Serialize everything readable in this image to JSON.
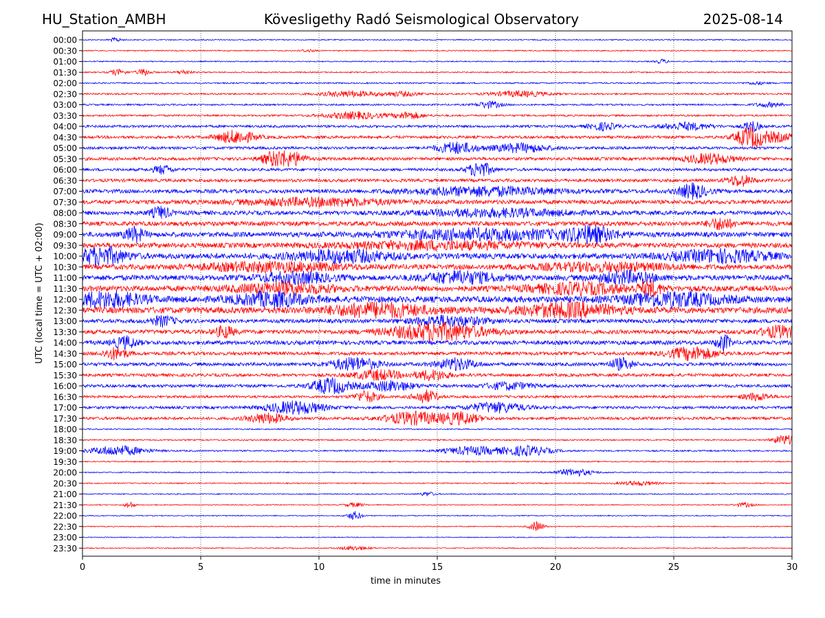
{
  "header": {
    "station": "HU_Station_AMBH",
    "title": "Kövesligethy Radó Seismological Observatory",
    "date": "2025-08-14"
  },
  "chart_data": {
    "type": "line",
    "title": "Kövesligethy Radó Seismological Observatory",
    "xlabel": "time in minutes",
    "ylabel": "UTC (local time = UTC + 02:00)",
    "xlim": [
      0,
      30
    ],
    "xticks": [
      0,
      5,
      10,
      15,
      20,
      25,
      30
    ],
    "grid": "vertical dotted at each x tick",
    "colors": [
      "#0000ff",
      "#ff0000"
    ],
    "rows": [
      {
        "label": "00:00",
        "color": "#0000ff",
        "base": 0.8,
        "events": [
          [
            1.4,
            0.25,
            3
          ]
        ]
      },
      {
        "label": "00:30",
        "color": "#ff0000",
        "base": 0.8,
        "events": [
          [
            9.5,
            0.3,
            2
          ]
        ]
      },
      {
        "label": "01:00",
        "color": "#0000ff",
        "base": 0.8,
        "events": [
          [
            24.5,
            0.25,
            3
          ]
        ]
      },
      {
        "label": "01:30",
        "color": "#ff0000",
        "base": 0.9,
        "events": [
          [
            1.5,
            0.35,
            4
          ],
          [
            2.6,
            0.3,
            5
          ],
          [
            4.3,
            0.3,
            3
          ]
        ]
      },
      {
        "label": "02:00",
        "color": "#0000ff",
        "base": 1.0,
        "events": [
          [
            28.5,
            0.4,
            2
          ]
        ]
      },
      {
        "label": "02:30",
        "color": "#ff0000",
        "base": 1.2,
        "events": [
          [
            11.3,
            1.2,
            4
          ],
          [
            13.5,
            0.8,
            3
          ],
          [
            18.5,
            1.2,
            4
          ]
        ]
      },
      {
        "label": "03:00",
        "color": "#0000ff",
        "base": 1.2,
        "events": [
          [
            17.2,
            0.5,
            5
          ],
          [
            29,
            0.6,
            3
          ]
        ]
      },
      {
        "label": "03:30",
        "color": "#ff0000",
        "base": 1.3,
        "events": [
          [
            11.5,
            1.2,
            5
          ],
          [
            13.8,
            0.6,
            5
          ]
        ]
      },
      {
        "label": "04:00",
        "color": "#0000ff",
        "base": 1.8,
        "events": [
          [
            22,
            0.6,
            5
          ],
          [
            25.5,
            1.0,
            5
          ],
          [
            28.3,
            0.3,
            9
          ]
        ]
      },
      {
        "label": "04:30",
        "color": "#ff0000",
        "base": 2.0,
        "events": [
          [
            6.5,
            0.8,
            9
          ],
          [
            28.2,
            0.6,
            12
          ],
          [
            29.2,
            1.0,
            6
          ]
        ]
      },
      {
        "label": "05:00",
        "color": "#0000ff",
        "base": 2.0,
        "events": [
          [
            15.8,
            0.8,
            8
          ],
          [
            18.5,
            1.2,
            6
          ]
        ]
      },
      {
        "label": "05:30",
        "color": "#ff0000",
        "base": 2.2,
        "events": [
          [
            8.2,
            0.6,
            11
          ],
          [
            9.0,
            0.5,
            7
          ],
          [
            26.5,
            1.0,
            7
          ]
        ]
      },
      {
        "label": "06:00",
        "color": "#0000ff",
        "base": 2.0,
        "events": [
          [
            3.4,
            0.4,
            6
          ],
          [
            16.8,
            0.5,
            11
          ]
        ]
      },
      {
        "label": "06:30",
        "color": "#ff0000",
        "base": 2.2,
        "events": [
          [
            27.8,
            0.5,
            8
          ]
        ]
      },
      {
        "label": "07:00",
        "color": "#0000ff",
        "base": 2.8,
        "events": [
          [
            17,
            3.0,
            6
          ],
          [
            25.8,
            0.6,
            10
          ]
        ]
      },
      {
        "label": "07:30",
        "color": "#ff0000",
        "base": 3.0,
        "events": [
          [
            10,
            3.0,
            5
          ]
        ]
      },
      {
        "label": "08:00",
        "color": "#0000ff",
        "base": 3.0,
        "events": [
          [
            3.3,
            0.4,
            8
          ],
          [
            17.5,
            3.0,
            5
          ]
        ]
      },
      {
        "label": "08:30",
        "color": "#ff0000",
        "base": 3.2,
        "events": [
          [
            27,
            0.5,
            8
          ]
        ]
      },
      {
        "label": "09:00",
        "color": "#0000ff",
        "base": 3.5,
        "events": [
          [
            2.2,
            0.4,
            10
          ],
          [
            17,
            4.0,
            7
          ],
          [
            21.5,
            1.0,
            10
          ]
        ]
      },
      {
        "label": "09:30",
        "color": "#ff0000",
        "base": 3.5,
        "events": [
          [
            15,
            4.0,
            5
          ]
        ]
      },
      {
        "label": "10:00",
        "color": "#0000ff",
        "base": 4.0,
        "events": [
          [
            0.8,
            1.0,
            12
          ],
          [
            11,
            2.0,
            8
          ],
          [
            27,
            2.0,
            8
          ]
        ]
      },
      {
        "label": "10:30",
        "color": "#ff0000",
        "base": 3.5,
        "events": [
          [
            8,
            3.0,
            6
          ],
          [
            22,
            3.0,
            5
          ]
        ]
      },
      {
        "label": "11:00",
        "color": "#0000ff",
        "base": 3.8,
        "events": [
          [
            9,
            1.5,
            7
          ],
          [
            16,
            1.5,
            8
          ],
          [
            23,
            1.2,
            8
          ]
        ]
      },
      {
        "label": "11:30",
        "color": "#ff0000",
        "base": 4.0,
        "events": [
          [
            8.5,
            2.0,
            7
          ],
          [
            21,
            2.0,
            7
          ],
          [
            24,
            0.5,
            9
          ]
        ]
      },
      {
        "label": "12:00",
        "color": "#0000ff",
        "base": 4.5,
        "events": [
          [
            1,
            1.5,
            10
          ],
          [
            8,
            1.5,
            9
          ],
          [
            25,
            2.0,
            9
          ]
        ]
      },
      {
        "label": "12:30",
        "color": "#ff0000",
        "base": 4.5,
        "events": [
          [
            12.5,
            2.0,
            9
          ],
          [
            20.5,
            2.0,
            9
          ]
        ]
      },
      {
        "label": "13:00",
        "color": "#0000ff",
        "base": 2.8,
        "events": [
          [
            3.4,
            0.5,
            7
          ],
          [
            15.5,
            1.5,
            7
          ]
        ]
      },
      {
        "label": "13:30",
        "color": "#ff0000",
        "base": 3.0,
        "events": [
          [
            15,
            2.0,
            12
          ],
          [
            6,
            0.4,
            8
          ],
          [
            29.5,
            0.8,
            8
          ]
        ]
      },
      {
        "label": "14:00",
        "color": "#0000ff",
        "base": 3.0,
        "events": [
          [
            1.8,
            0.5,
            8
          ],
          [
            27.1,
            0.3,
            11
          ]
        ]
      },
      {
        "label": "14:30",
        "color": "#ff0000",
        "base": 2.5,
        "events": [
          [
            1.4,
            0.5,
            8
          ],
          [
            25.8,
            1.0,
            9
          ]
        ]
      },
      {
        "label": "15:00",
        "color": "#0000ff",
        "base": 2.5,
        "events": [
          [
            11.5,
            1.0,
            9
          ],
          [
            15.8,
            0.8,
            8
          ],
          [
            22.8,
            0.5,
            8
          ]
        ]
      },
      {
        "label": "15:30",
        "color": "#ff0000",
        "base": 2.2,
        "events": [
          [
            12.5,
            1.0,
            7
          ],
          [
            14.8,
            0.7,
            7
          ]
        ]
      },
      {
        "label": "16:00",
        "color": "#0000ff",
        "base": 2.2,
        "events": [
          [
            10.5,
            0.8,
            11
          ],
          [
            13,
            1.0,
            7
          ],
          [
            18,
            1.0,
            5
          ]
        ]
      },
      {
        "label": "16:30",
        "color": "#ff0000",
        "base": 1.8,
        "events": [
          [
            12,
            0.5,
            8
          ],
          [
            14.5,
            0.5,
            9
          ],
          [
            28.5,
            0.6,
            5
          ]
        ]
      },
      {
        "label": "17:00",
        "color": "#0000ff",
        "base": 2.0,
        "events": [
          [
            9,
            1.2,
            9
          ],
          [
            17.5,
            1.2,
            7
          ]
        ]
      },
      {
        "label": "17:30",
        "color": "#ff0000",
        "base": 2.0,
        "events": [
          [
            7.8,
            0.8,
            7
          ],
          [
            14,
            1.2,
            9
          ],
          [
            16,
            0.8,
            8
          ]
        ]
      },
      {
        "label": "18:00",
        "color": "#0000ff",
        "base": 0.9,
        "events": []
      },
      {
        "label": "18:30",
        "color": "#ff0000",
        "base": 1.0,
        "events": [
          [
            29.7,
            0.5,
            7
          ]
        ]
      },
      {
        "label": "19:00",
        "color": "#0000ff",
        "base": 1.1,
        "events": [
          [
            1.5,
            1.2,
            7
          ],
          [
            16.5,
            1.2,
            6
          ],
          [
            18.8,
            1.0,
            7
          ]
        ]
      },
      {
        "label": "19:30",
        "color": "#ff0000",
        "base": 0.8,
        "events": []
      },
      {
        "label": "20:00",
        "color": "#0000ff",
        "base": 0.8,
        "events": [
          [
            20.8,
            0.8,
            5
          ]
        ]
      },
      {
        "label": "20:30",
        "color": "#ff0000",
        "base": 0.8,
        "events": [
          [
            23.5,
            0.8,
            3
          ]
        ]
      },
      {
        "label": "21:00",
        "color": "#0000ff",
        "base": 0.8,
        "events": [
          [
            14.6,
            0.3,
            3
          ]
        ]
      },
      {
        "label": "21:30",
        "color": "#ff0000",
        "base": 0.7,
        "events": [
          [
            2,
            0.2,
            5
          ],
          [
            11.5,
            0.4,
            3
          ],
          [
            28,
            0.4,
            3
          ]
        ]
      },
      {
        "label": "22:00",
        "color": "#0000ff",
        "base": 0.7,
        "events": [
          [
            11.5,
            0.3,
            6
          ]
        ]
      },
      {
        "label": "22:30",
        "color": "#ff0000",
        "base": 0.7,
        "events": [
          [
            19.2,
            0.3,
            7
          ]
        ]
      },
      {
        "label": "23:00",
        "color": "#0000ff",
        "base": 0.6,
        "events": []
      },
      {
        "label": "23:30",
        "color": "#ff0000",
        "base": 0.7,
        "events": [
          [
            11.5,
            0.6,
            3
          ]
        ]
      }
    ]
  }
}
